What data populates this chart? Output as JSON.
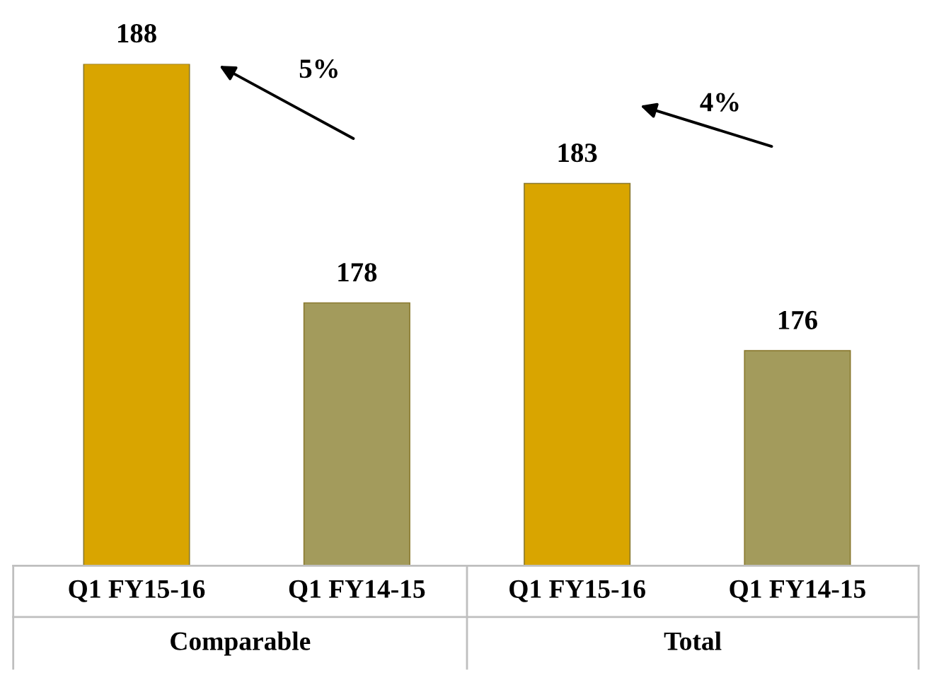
{
  "chart_data": {
    "type": "bar",
    "categories": [
      "Q1 FY15-16",
      "Q1 FY14-15",
      "Q1 FY15-16",
      "Q1 FY14-15"
    ],
    "values": [
      188,
      178,
      183,
      176
    ],
    "colors": [
      "#d9a500",
      "#a39b5c",
      "#d9a500",
      "#a39b5c"
    ],
    "ylim": [
      167,
      188
    ],
    "data_labels": true,
    "annotations": [
      "5%",
      "4%",
      "Comparable",
      "Total"
    ]
  }
}
